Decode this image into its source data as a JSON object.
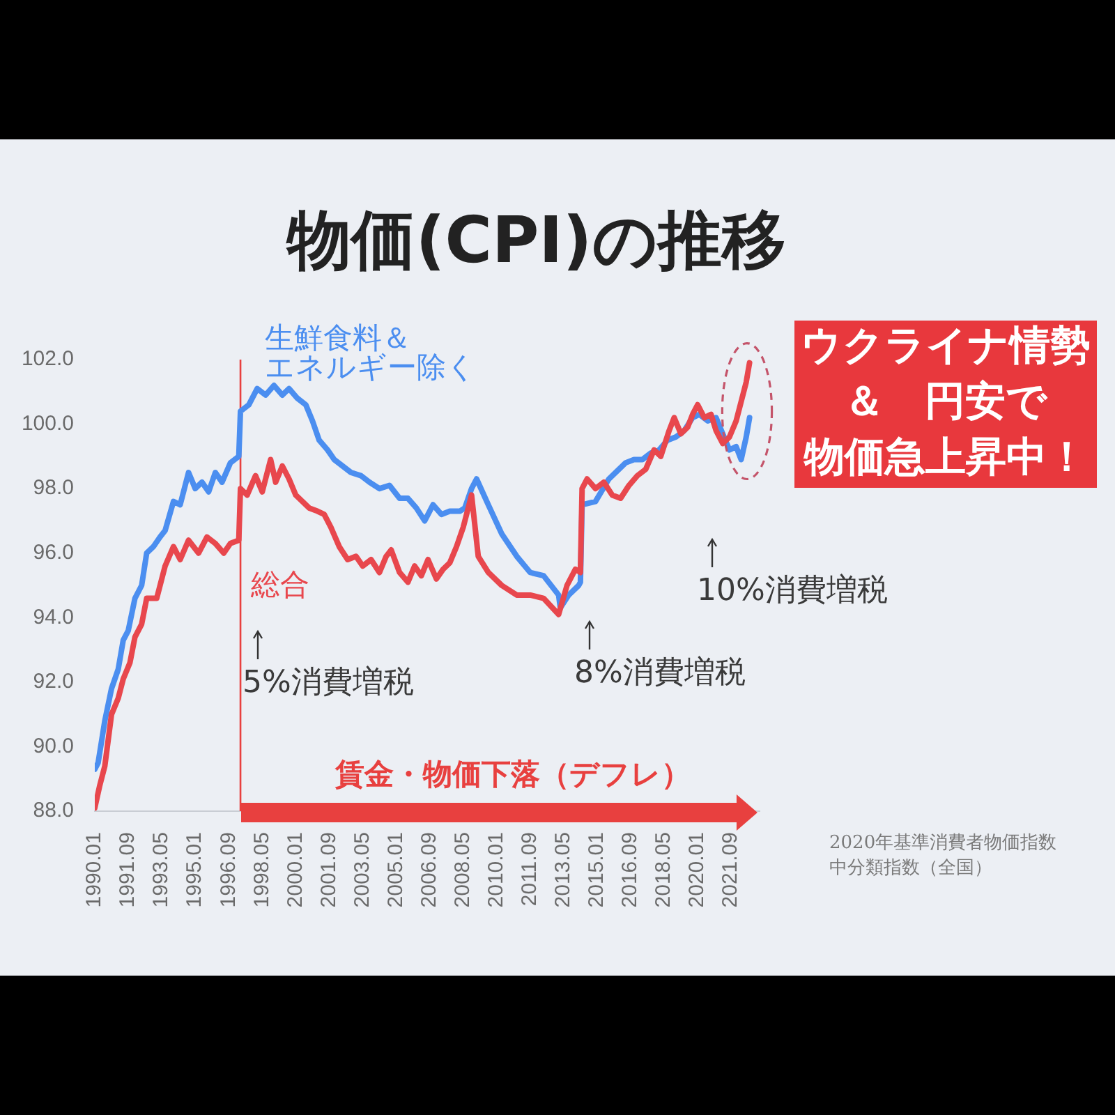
{
  "chart_data": {
    "type": "line",
    "title": "物価(CPI)の推移",
    "xlim": [
      "1990-01",
      "2023-02"
    ],
    "xticks": [
      {
        "value": "1990-01",
        "label": "1990.01"
      },
      {
        "value": "1991-09",
        "label": "1991.09"
      },
      {
        "value": "1993-05",
        "label": "1993.05"
      },
      {
        "value": "1995-01",
        "label": "1995.01"
      },
      {
        "value": "1996-09",
        "label": "1996.09"
      },
      {
        "value": "1998-05",
        "label": "1998.05"
      },
      {
        "value": "2000-01",
        "label": "2000.01"
      },
      {
        "value": "2001-09",
        "label": "2001.09"
      },
      {
        "value": "2003-05",
        "label": "2003.05"
      },
      {
        "value": "2005-01",
        "label": "2005.01"
      },
      {
        "value": "2006-09",
        "label": "2006.09"
      },
      {
        "value": "2008-05",
        "label": "2008.05"
      },
      {
        "value": "2010-01",
        "label": "2010.01"
      },
      {
        "value": "2011-09",
        "label": "2011.09"
      },
      {
        "value": "2013-05",
        "label": "2013.05"
      },
      {
        "value": "2015-01",
        "label": "2015.01"
      },
      {
        "value": "2016-09",
        "label": "2016.09"
      },
      {
        "value": "2018-05",
        "label": "2018.05"
      },
      {
        "value": "2020-01",
        "label": "2020.01"
      },
      {
        "value": "2021-09",
        "label": "2021.09"
      }
    ],
    "ylim": [
      88,
      102
    ],
    "yticks": [
      {
        "value": 88,
        "label": "88.0"
      },
      {
        "value": 90,
        "label": "90.0"
      },
      {
        "value": 92,
        "label": "92.0"
      },
      {
        "value": 94,
        "label": "94.0"
      },
      {
        "value": 96,
        "label": "96.0"
      },
      {
        "value": 98,
        "label": "98.0"
      },
      {
        "value": 100,
        "label": "100.0"
      },
      {
        "value": 102,
        "label": "102.0"
      }
    ],
    "series": [
      {
        "name": "生鮮食料＆エネルギー除く",
        "color": "#4b8ef0",
        "x": [
          "1990-01",
          "1990-03",
          "1990-07",
          "1990-11",
          "1991-03",
          "1991-06",
          "1991-09",
          "1992-01",
          "1992-05",
          "1992-08",
          "1992-12",
          "1993-04",
          "1993-07",
          "1993-12",
          "1994-04",
          "1994-09",
          "1995-01",
          "1995-05",
          "1995-09",
          "1996-01",
          "1996-05",
          "1996-10",
          "1997-03",
          "1997-04",
          "1997-09",
          "1998-02",
          "1998-07",
          "1998-12",
          "1999-05",
          "1999-09",
          "2000-02",
          "2000-07",
          "2000-11",
          "2001-03",
          "2001-08",
          "2001-12",
          "2002-05",
          "2002-10",
          "2003-04",
          "2003-09",
          "2004-03",
          "2004-09",
          "2005-03",
          "2005-08",
          "2006-01",
          "2006-06",
          "2006-11",
          "2007-04",
          "2007-09",
          "2008-03",
          "2008-06",
          "2008-10",
          "2009-01",
          "2009-08",
          "2010-04",
          "2011-01",
          "2011-09",
          "2012-05",
          "2013-02",
          "2013-03",
          "2013-08",
          "2014-02",
          "2014-03",
          "2014-04",
          "2014-12",
          "2015-08",
          "2016-06",
          "2016-11",
          "2017-04",
          "2017-09",
          "2018-02",
          "2018-07",
          "2018-12",
          "2019-05",
          "2019-10",
          "2020-02",
          "2020-07",
          "2020-12",
          "2021-04",
          "2021-08",
          "2021-12",
          "2022-03",
          "2022-06",
          "2022-08"
        ],
        "values": [
          89.3,
          89.5,
          90.8,
          91.8,
          92.4,
          93.3,
          93.6,
          94.6,
          95.0,
          96.0,
          96.2,
          96.5,
          96.7,
          97.6,
          97.5,
          98.5,
          98.0,
          98.2,
          97.9,
          98.5,
          98.2,
          98.8,
          99.0,
          100.4,
          100.6,
          101.1,
          100.9,
          101.2,
          100.9,
          101.1,
          100.8,
          100.6,
          100.1,
          99.5,
          99.2,
          98.9,
          98.7,
          98.5,
          98.4,
          98.2,
          98.0,
          98.1,
          97.7,
          97.7,
          97.4,
          97.0,
          97.5,
          97.2,
          97.3,
          97.3,
          97.4,
          98.0,
          98.3,
          97.5,
          96.6,
          95.9,
          95.4,
          95.3,
          94.7,
          94.3,
          94.7,
          95.0,
          95.1,
          97.5,
          97.6,
          98.3,
          98.8,
          98.9,
          98.9,
          99.1,
          99.2,
          99.5,
          99.6,
          99.8,
          100.2,
          100.3,
          100.1,
          100.2,
          99.7,
          99.2,
          99.3,
          98.9,
          99.6,
          100.2
        ]
      },
      {
        "name": "総合",
        "color": "#e8474d",
        "x": [
          "1990-01",
          "1990-04",
          "1990-07",
          "1990-11",
          "1991-03",
          "1991-06",
          "1991-10",
          "1992-01",
          "1992-05",
          "1992-08",
          "1993-02",
          "1993-07",
          "1993-12",
          "1994-04",
          "1994-09",
          "1995-03",
          "1995-08",
          "1996-01",
          "1996-06",
          "1996-10",
          "1997-03",
          "1997-04",
          "1997-08",
          "1998-01",
          "1998-05",
          "1998-10",
          "1999-01",
          "1999-05",
          "1999-09",
          "2000-01",
          "2000-05",
          "2000-09",
          "2001-02",
          "2001-06",
          "2001-10",
          "2002-03",
          "2002-08",
          "2003-01",
          "2003-05",
          "2003-10",
          "2004-03",
          "2004-07",
          "2004-10",
          "2005-03",
          "2005-08",
          "2005-12",
          "2006-04",
          "2006-08",
          "2007-01",
          "2007-05",
          "2007-09",
          "2008-01",
          "2008-05",
          "2008-10",
          "2009-02",
          "2009-08",
          "2010-04",
          "2011-01",
          "2011-09",
          "2012-05",
          "2013-02",
          "2013-07",
          "2013-12",
          "2014-03",
          "2014-04",
          "2014-07",
          "2014-12",
          "2015-05",
          "2015-10",
          "2016-03",
          "2016-08",
          "2017-01",
          "2017-06",
          "2017-11",
          "2018-03",
          "2018-08",
          "2018-11",
          "2019-03",
          "2019-07",
          "2019-10",
          "2020-01",
          "2020-05",
          "2020-09",
          "2020-12",
          "2021-04",
          "2021-08",
          "2021-12",
          "2022-03",
          "2022-06",
          "2022-08"
        ],
        "values": [
          88.1,
          88.8,
          89.4,
          91.0,
          91.5,
          92.1,
          92.6,
          93.4,
          93.8,
          94.6,
          94.6,
          95.6,
          96.2,
          95.8,
          96.4,
          96.0,
          96.5,
          96.3,
          96.0,
          96.3,
          96.4,
          98.0,
          97.8,
          98.4,
          97.9,
          98.9,
          98.2,
          98.7,
          98.3,
          97.8,
          97.6,
          97.4,
          97.3,
          97.2,
          96.8,
          96.2,
          95.8,
          95.9,
          95.6,
          95.8,
          95.4,
          95.9,
          96.1,
          95.4,
          95.1,
          95.6,
          95.3,
          95.8,
          95.2,
          95.5,
          95.7,
          96.2,
          96.8,
          97.8,
          95.9,
          95.4,
          95.0,
          94.7,
          94.7,
          94.6,
          94.1,
          95.0,
          95.5,
          95.4,
          98.0,
          98.3,
          98.0,
          98.2,
          97.8,
          97.7,
          98.1,
          98.4,
          98.6,
          99.2,
          99.0,
          99.8,
          100.2,
          99.7,
          99.9,
          100.3,
          100.6,
          100.2,
          100.3,
          99.8,
          99.4,
          99.6,
          100.1,
          100.7,
          101.3,
          101.9
        ]
      }
    ],
    "ref_lines": [
      {
        "axis": "x",
        "value": "1997-04",
        "label": "賃金・物価下落（デフレ）",
        "color": "#e8403f"
      }
    ],
    "annotations": [
      "5%消費増税",
      "8%消費増税",
      "10%消費増税",
      "ウクライナ情勢＆　円安で物価急上昇中！",
      "2020年基準消費者物価指数中分類指数（全国）"
    ]
  }
}
